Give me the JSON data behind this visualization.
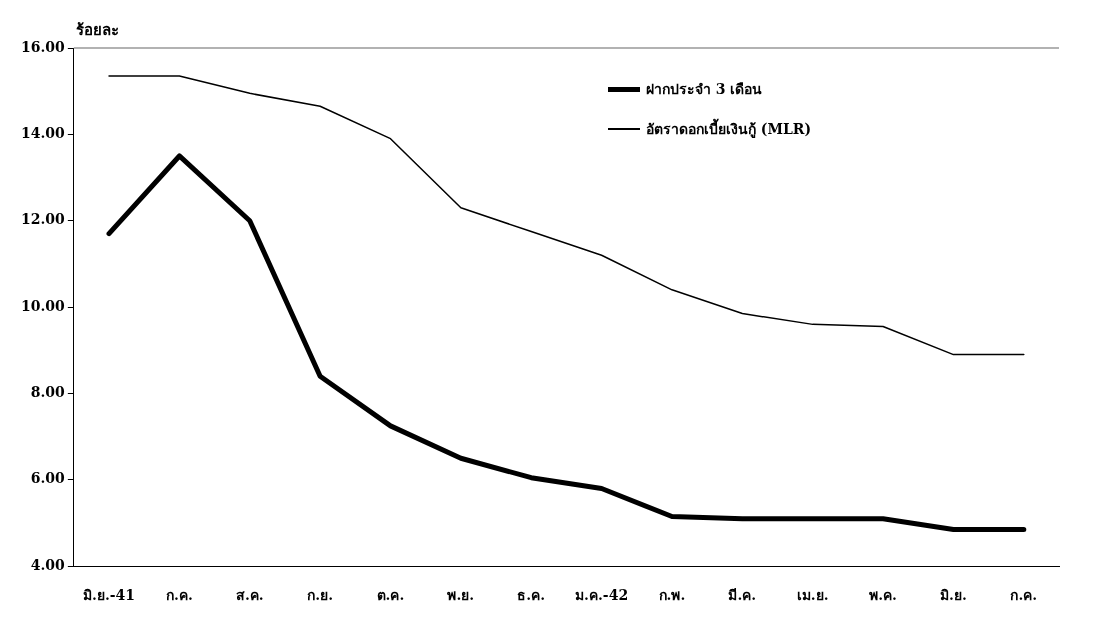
{
  "chart_data": {
    "type": "line",
    "ylabel": "ร้อยละ",
    "categories": [
      "มิ.ย.-41",
      "ก.ค.",
      "ส.ค.",
      "ก.ย.",
      "ต.ค.",
      "พ.ย.",
      "ธ.ค.",
      "ม.ค.-42",
      "ก.พ.",
      "มี.ค.",
      "เม.ย.",
      "พ.ค.",
      "มิ.ย.",
      "ก.ค."
    ],
    "series": [
      {
        "name": "ฝากประจำ 3 เดือน",
        "color": "#000000",
        "values": [
          11.7,
          13.5,
          12.0,
          8.4,
          7.25,
          6.5,
          6.05,
          5.8,
          5.15,
          5.1,
          5.1,
          5.1,
          4.85,
          4.85
        ]
      },
      {
        "name": "อัตราดอกเบี้ยเงินกู้ (MLR)",
        "color": "#000000",
        "values": [
          15.35,
          15.35,
          14.95,
          14.65,
          13.9,
          12.3,
          11.75,
          11.2,
          10.4,
          9.85,
          9.6,
          9.55,
          8.9,
          8.9
        ]
      }
    ],
    "ylim": [
      4,
      16
    ],
    "yticks": [
      {
        "value": 4,
        "label": "4.00"
      },
      {
        "value": 6,
        "label": "6.00"
      },
      {
        "value": 8,
        "label": "8.00"
      },
      {
        "value": 10,
        "label": "10.00"
      },
      {
        "value": 12,
        "label": "12.00"
      },
      {
        "value": 14,
        "label": "14.00"
      },
      {
        "value": 16,
        "label": "16.00"
      }
    ],
    "grid": false,
    "legend": "top right",
    "marker": "none",
    "line_style": "solid"
  }
}
